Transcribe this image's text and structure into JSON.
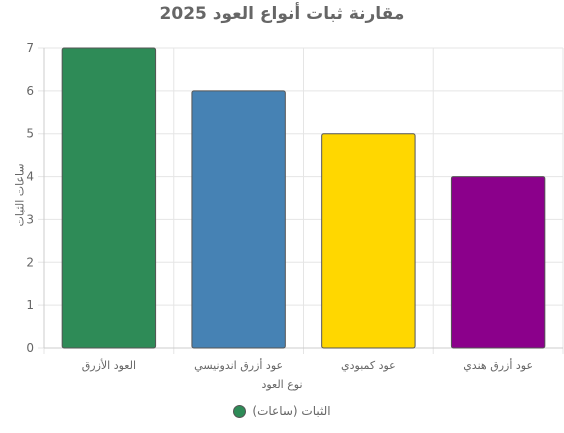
{
  "chart_data": {
    "type": "bar",
    "title": "مقارنة ثبات أنواع العود 2025",
    "xlabel": "نوع العود",
    "ylabel": "ساعات الثبات",
    "categories": [
      "العود الأزرق",
      "عود أزرق اندونيسي",
      "عود كمبودي",
      "عود أزرق هندي"
    ],
    "series": [
      {
        "name": "الثبات (ساعات)",
        "values": [
          7,
          6,
          5,
          4
        ],
        "colors": [
          "#2e8b57",
          "#4682b4",
          "#ffd700",
          "#8b008b"
        ]
      }
    ],
    "ylim": [
      0,
      7
    ],
    "yticks": [
      0,
      1,
      2,
      3,
      4,
      5,
      6,
      7
    ],
    "grid": true,
    "legend": "bottom"
  }
}
